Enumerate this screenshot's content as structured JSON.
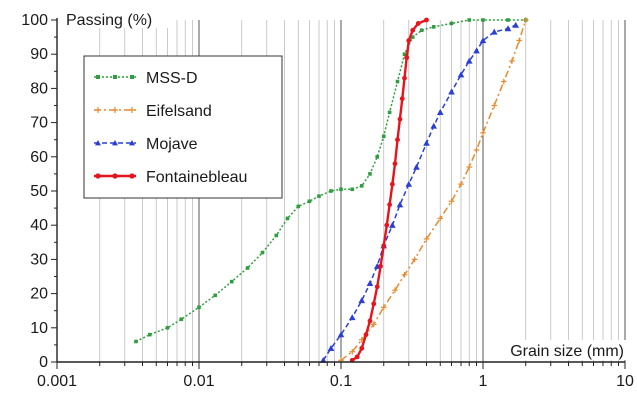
{
  "chart_data": {
    "type": "line",
    "xscale": "log",
    "xlim": [
      0.001,
      10
    ],
    "ylim": [
      0,
      100
    ],
    "xlabel": "Grain size (mm)",
    "ylabel": "Passing (%)",
    "xticks": [
      {
        "value": 0.001,
        "label": "0.001"
      },
      {
        "value": 0.01,
        "label": "0.01"
      },
      {
        "value": 0.1,
        "label": "0.1"
      },
      {
        "value": 1,
        "label": "1"
      },
      {
        "value": 10,
        "label": "10"
      }
    ],
    "yticks": [
      {
        "value": 0,
        "label": "0"
      },
      {
        "value": 10,
        "label": "10"
      },
      {
        "value": 20,
        "label": "20"
      },
      {
        "value": 30,
        "label": "30"
      },
      {
        "value": 40,
        "label": "40"
      },
      {
        "value": 50,
        "label": "50"
      },
      {
        "value": 60,
        "label": "60"
      },
      {
        "value": 70,
        "label": "70"
      },
      {
        "value": 80,
        "label": "80"
      },
      {
        "value": 90,
        "label": "90"
      },
      {
        "value": 100,
        "label": "100"
      }
    ],
    "grid": "vertical minor and major lines on log x axis",
    "legend_position": "top-left",
    "series": [
      {
        "name": "MSS-D",
        "color": "#2e9e3e",
        "marker": "square",
        "dash": "dotted",
        "points": [
          [
            0.0036,
            6
          ],
          [
            0.0045,
            8
          ],
          [
            0.006,
            10
          ],
          [
            0.0075,
            12.5
          ],
          [
            0.01,
            16
          ],
          [
            0.013,
            19.5
          ],
          [
            0.017,
            23.5
          ],
          [
            0.022,
            27.5
          ],
          [
            0.028,
            32
          ],
          [
            0.035,
            37
          ],
          [
            0.042,
            42
          ],
          [
            0.05,
            45.5
          ],
          [
            0.06,
            47
          ],
          [
            0.07,
            48.5
          ],
          [
            0.085,
            50
          ],
          [
            0.1,
            50.5
          ],
          [
            0.12,
            50.5
          ],
          [
            0.14,
            51.5
          ],
          [
            0.16,
            55
          ],
          [
            0.18,
            60
          ],
          [
            0.2,
            66
          ],
          [
            0.22,
            73
          ],
          [
            0.25,
            82
          ],
          [
            0.28,
            90
          ],
          [
            0.32,
            95
          ],
          [
            0.37,
            97
          ],
          [
            0.45,
            98
          ],
          [
            0.6,
            99
          ],
          [
            0.8,
            100
          ],
          [
            1.0,
            100
          ],
          [
            1.5,
            100
          ],
          [
            2.0,
            100
          ]
        ]
      },
      {
        "name": "Eifelsand",
        "color": "#e88a2e",
        "marker": "plus",
        "dash": "dashdot",
        "points": [
          [
            0.1,
            0.5
          ],
          [
            0.12,
            3
          ],
          [
            0.14,
            6.5
          ],
          [
            0.17,
            11
          ],
          [
            0.2,
            16
          ],
          [
            0.24,
            21
          ],
          [
            0.28,
            25.5
          ],
          [
            0.33,
            30
          ],
          [
            0.4,
            36
          ],
          [
            0.5,
            42
          ],
          [
            0.6,
            47
          ],
          [
            0.7,
            52
          ],
          [
            0.8,
            57
          ],
          [
            0.9,
            62
          ],
          [
            1.0,
            67
          ],
          [
            1.2,
            75
          ],
          [
            1.4,
            82
          ],
          [
            1.6,
            88
          ],
          [
            1.8,
            94
          ],
          [
            2.0,
            100
          ]
        ]
      },
      {
        "name": "Mojave",
        "color": "#2a3ed8",
        "marker": "triangle",
        "dash": "dashed",
        "points": [
          [
            0.075,
            0.5
          ],
          [
            0.085,
            4
          ],
          [
            0.1,
            8
          ],
          [
            0.12,
            13
          ],
          [
            0.14,
            18
          ],
          [
            0.16,
            23
          ],
          [
            0.18,
            28
          ],
          [
            0.2,
            34
          ],
          [
            0.23,
            40
          ],
          [
            0.26,
            46
          ],
          [
            0.3,
            52
          ],
          [
            0.34,
            57
          ],
          [
            0.4,
            64
          ],
          [
            0.45,
            69
          ],
          [
            0.5,
            73
          ],
          [
            0.6,
            79
          ],
          [
            0.7,
            84
          ],
          [
            0.8,
            88
          ],
          [
            0.9,
            91
          ],
          [
            1.0,
            94
          ],
          [
            1.2,
            96.5
          ],
          [
            1.5,
            97.5
          ],
          [
            1.7,
            98.5
          ]
        ]
      },
      {
        "name": "Fontainebleau",
        "color": "#e8141c",
        "marker": "circle",
        "dash": "solid",
        "points": [
          [
            0.12,
            0.5
          ],
          [
            0.13,
            1.5
          ],
          [
            0.14,
            4
          ],
          [
            0.15,
            8
          ],
          [
            0.16,
            12
          ],
          [
            0.17,
            17
          ],
          [
            0.18,
            22
          ],
          [
            0.19,
            28
          ],
          [
            0.2,
            34
          ],
          [
            0.21,
            40
          ],
          [
            0.22,
            46
          ],
          [
            0.23,
            52
          ],
          [
            0.24,
            58
          ],
          [
            0.25,
            65
          ],
          [
            0.26,
            71
          ],
          [
            0.27,
            77
          ],
          [
            0.28,
            83
          ],
          [
            0.29,
            89
          ],
          [
            0.3,
            94
          ],
          [
            0.32,
            97
          ],
          [
            0.35,
            99
          ],
          [
            0.4,
            100
          ]
        ]
      }
    ]
  }
}
